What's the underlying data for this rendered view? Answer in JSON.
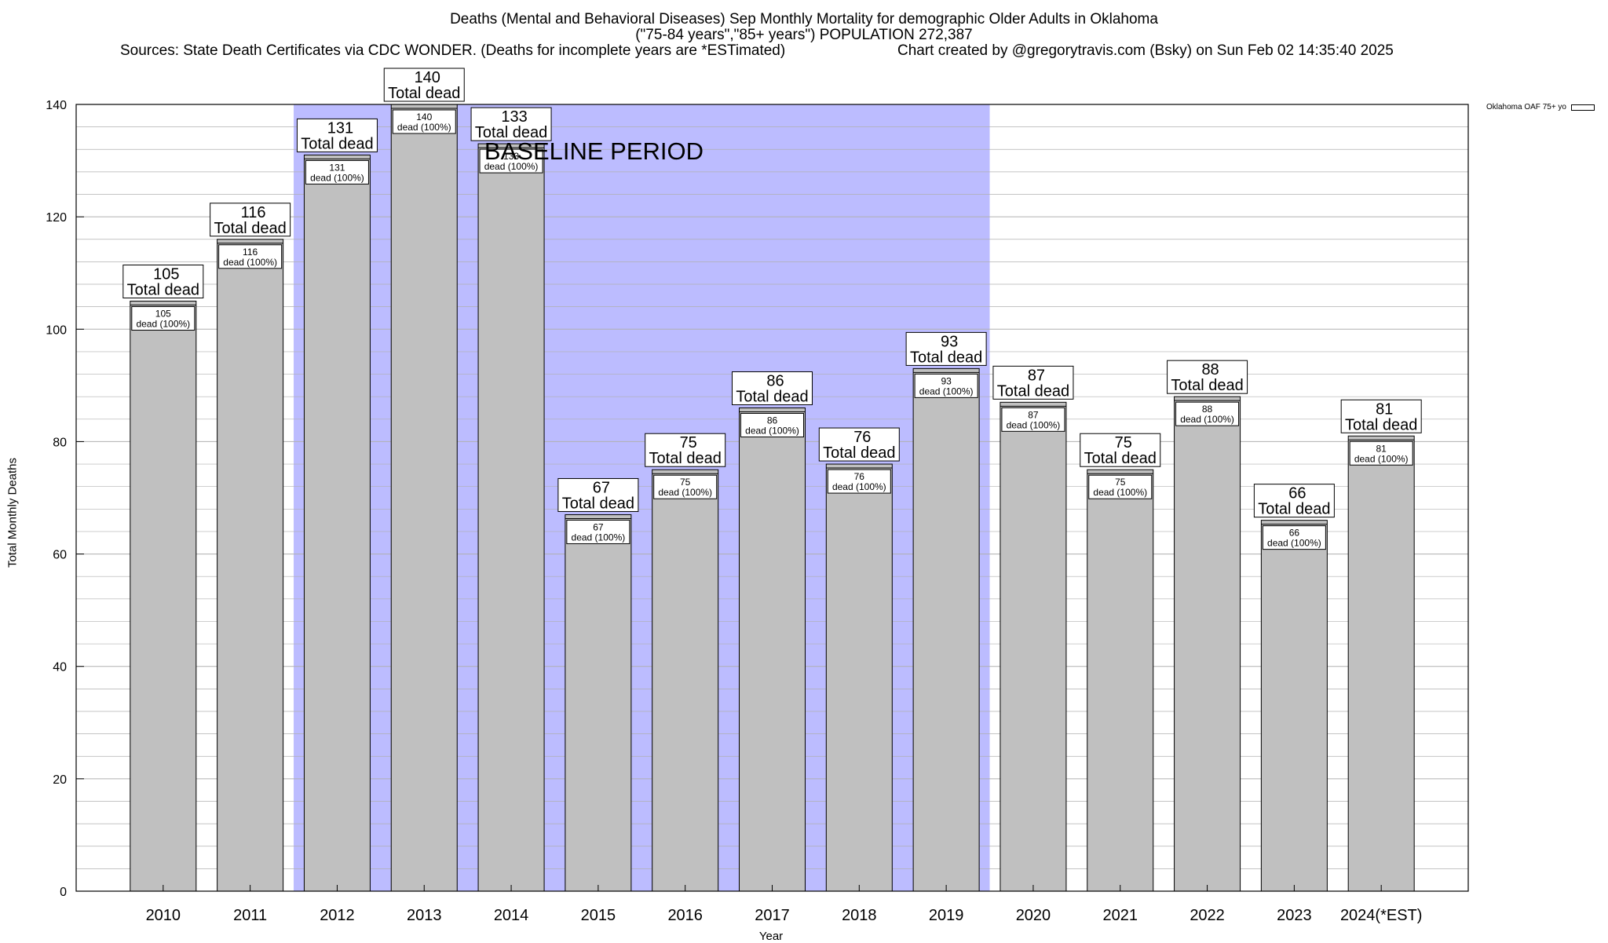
{
  "header": {
    "title_line1": "Deaths (Mental and Behavioral Diseases) Sep Monthly Mortality for demographic Older Adults in Oklahoma",
    "title_line2": "(\"75-84 years\",\"85+ years\") POPULATION 272,387",
    "sources": "Sources: State Death Certificates via CDC WONDER. (Deaths for incomplete years are *ESTimated)",
    "credit": "Chart created by @gregorytravis.com (Bsky) on Sun Feb 02 14:35:40 2025"
  },
  "colors": {
    "bar_fill": "#c0c0c0",
    "baseline_shade": "#bcbcff",
    "grid": "#b0b0b0"
  },
  "chart_data": {
    "type": "bar",
    "title": "Deaths (Mental and Behavioral Diseases) Sep Monthly Mortality for demographic Older Adults in Oklahoma",
    "xlabel": "Year",
    "ylabel": "Total Monthly Deaths",
    "ylim": [
      0,
      140
    ],
    "yticks": [
      0,
      20,
      40,
      60,
      80,
      100,
      120,
      140
    ],
    "grid": true,
    "legend_position": "top-right",
    "categories": [
      "2010",
      "2011",
      "2012",
      "2013",
      "2014",
      "2015",
      "2016",
      "2017",
      "2018",
      "2019",
      "2020",
      "2021",
      "2022",
      "2023",
      "2024(*EST)"
    ],
    "series": [
      {
        "name": "Oklahoma OAF 75+ yo",
        "values": [
          105,
          116,
          131,
          140,
          133,
          67,
          75,
          86,
          76,
          93,
          87,
          75,
          88,
          66,
          81
        ]
      }
    ],
    "annotations": {
      "total_label": "Total dead",
      "inner_label_suffix": "dead (100%)",
      "baseline_label": "BASELINE PERIOD",
      "baseline_range": [
        "2012",
        "2019"
      ]
    }
  }
}
